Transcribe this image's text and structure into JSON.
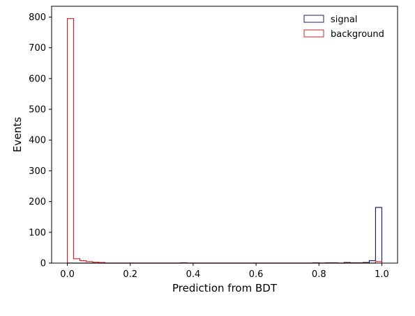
{
  "chart_data": {
    "type": "histogram",
    "title": "",
    "xlabel": "Prediction from BDT",
    "ylabel": "Events",
    "xlim": [
      -0.05,
      1.05
    ],
    "ylim": [
      0,
      835
    ],
    "xticks": [
      0.0,
      0.2,
      0.4,
      0.6,
      0.8,
      1.0
    ],
    "xtick_labels": [
      "0.0",
      "0.2",
      "0.4",
      "0.6",
      "0.8",
      "1.0"
    ],
    "yticks": [
      0,
      100,
      200,
      300,
      400,
      500,
      600,
      700,
      800
    ],
    "ytick_labels": [
      "0",
      "100",
      "200",
      "300",
      "400",
      "500",
      "600",
      "700",
      "800"
    ],
    "grid": false,
    "legend_position": "top-right",
    "bins": {
      "start": 0.0,
      "end": 1.0,
      "count": 50
    },
    "series": [
      {
        "name": "signal",
        "color": "#1f1f6e",
        "counts": [
          0,
          0,
          0,
          0,
          0,
          0,
          0,
          0,
          0,
          0,
          0,
          0,
          0,
          0,
          0,
          0,
          0,
          0,
          1,
          0,
          0,
          0,
          0,
          0,
          0,
          0,
          0,
          0,
          0,
          0,
          0,
          0,
          0,
          0,
          0,
          0,
          0,
          0,
          0,
          1,
          0,
          1,
          1,
          0,
          2,
          1,
          1,
          2,
          8,
          181
        ]
      },
      {
        "name": "background",
        "color": "#cc2222",
        "counts": [
          795,
          14,
          8,
          5,
          3,
          2,
          0,
          0,
          0,
          0,
          0,
          0,
          0,
          0,
          0,
          0,
          0,
          0,
          0,
          0,
          0,
          0,
          0,
          0,
          0,
          0,
          0,
          0,
          0,
          0,
          0,
          0,
          0,
          0,
          0,
          0,
          0,
          0,
          0,
          0,
          0,
          0,
          0,
          0,
          0,
          0,
          0,
          0,
          0,
          5
        ]
      }
    ]
  }
}
